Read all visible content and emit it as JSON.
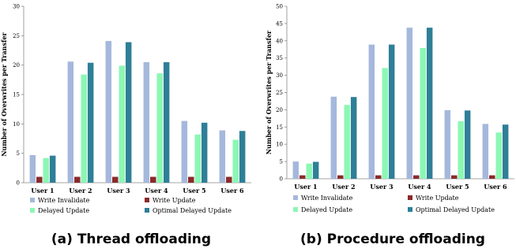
{
  "chart_data": [
    {
      "type": "bar",
      "caption": "(a) Thread offloading",
      "ylabel": "Number of Overwrites per Transfer",
      "ylim": [
        0,
        30
      ],
      "yticks": [
        0,
        5,
        10,
        15,
        20,
        25,
        30
      ],
      "categories": [
        "User 1",
        "User 2",
        "User 3",
        "User 4",
        "User 5",
        "User 6"
      ],
      "series": [
        {
          "name": "Write Invalidate",
          "color": "#a5b8dc",
          "values": [
            4.7,
            20.6,
            24.1,
            20.5,
            10.5,
            8.9
          ]
        },
        {
          "name": "Write Update",
          "color": "#8b2a2a",
          "values": [
            1.0,
            1.0,
            1.0,
            1.0,
            1.0,
            1.0
          ]
        },
        {
          "name": "Delayed Update",
          "color": "#8cf7b4",
          "values": [
            4.2,
            18.4,
            19.9,
            18.6,
            8.2,
            7.3
          ]
        },
        {
          "name": "Optimal Delayed Update",
          "color": "#2e7f97",
          "values": [
            4.6,
            20.4,
            23.9,
            20.5,
            10.2,
            8.8
          ]
        }
      ]
    },
    {
      "type": "bar",
      "caption": "(b) Procedure offloading",
      "ylabel": "Number of Overwrites per Transfer",
      "ylim": [
        0,
        50
      ],
      "yticks": [
        0,
        5,
        10,
        15,
        20,
        25,
        30,
        35,
        40,
        45,
        50
      ],
      "categories": [
        "User 1",
        "User 2",
        "User 3",
        "User 4",
        "User 5",
        "User 6"
      ],
      "series": [
        {
          "name": "Write Invalidate",
          "color": "#a5b8dc",
          "values": [
            5.0,
            23.8,
            38.9,
            43.8,
            19.9,
            15.9
          ]
        },
        {
          "name": "Write Update",
          "color": "#8b2a2a",
          "values": [
            1.0,
            1.0,
            1.0,
            1.0,
            1.0,
            1.0
          ]
        },
        {
          "name": "Delayed Update",
          "color": "#8cf7b4",
          "values": [
            4.4,
            21.4,
            32.1,
            37.9,
            16.7,
            13.4
          ]
        },
        {
          "name": "Optimal Delayed Update",
          "color": "#2e7f97",
          "values": [
            4.9,
            23.7,
            38.9,
            43.8,
            19.8,
            15.7
          ]
        }
      ]
    }
  ]
}
